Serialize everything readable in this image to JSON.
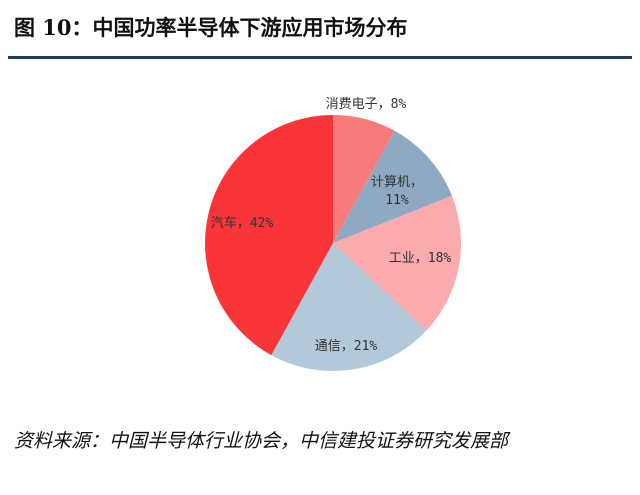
{
  "figure": {
    "title": "图 10：中国功率半导体下游应用市场分布",
    "source": "资料来源：中国半导体行业协会，中信建投证券研究发展部"
  },
  "chart_data": {
    "type": "pie",
    "title": "",
    "start_angle_deg": 0,
    "direction": "clockwise",
    "slices": [
      {
        "category": "消费电子",
        "value": 8,
        "color": "#f67c7b",
        "label_line1": "消费电子，8%",
        "label_line2": ""
      },
      {
        "category": "计算机",
        "value": 11,
        "color": "#8ea9c1",
        "label_line1": "计算机，",
        "label_line2": "11%"
      },
      {
        "category": "工业",
        "value": 18,
        "color": "#fbaaae",
        "label_line1": "工业，18%",
        "label_line2": ""
      },
      {
        "category": "通信",
        "value": 21,
        "color": "#b3c8d8",
        "label_line1": "通信，21%",
        "label_line2": ""
      },
      {
        "category": "汽车",
        "value": 42,
        "color": "#f9353a",
        "label_line1": "汽车，42%",
        "label_line2": ""
      }
    ],
    "legend": "none"
  }
}
